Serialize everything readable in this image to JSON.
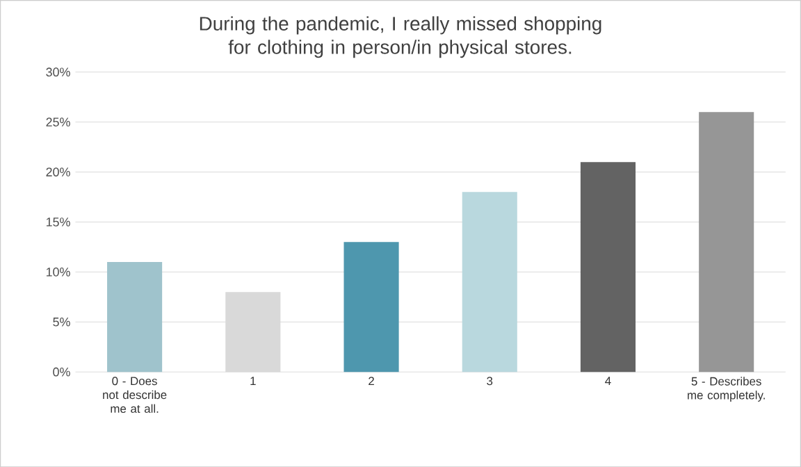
{
  "chart_data": {
    "type": "bar",
    "title": "During the pandemic, I really missed shopping for clothing in person/in physical stores.",
    "categories": [
      "0 - Does not describe me at all.",
      "1",
      "2",
      "3",
      "4",
      "5 - Describes me completely."
    ],
    "values": [
      11,
      8,
      13,
      18,
      21,
      26
    ],
    "colors": [
      "#9fc3cc",
      "#d9d9d9",
      "#4e97ae",
      "#b9d8de",
      "#636363",
      "#969696"
    ],
    "ylim": [
      0,
      30
    ],
    "yticks": [
      {
        "value": 0,
        "label": "0%"
      },
      {
        "value": 5,
        "label": "5%"
      },
      {
        "value": 10,
        "label": "10%"
      },
      {
        "value": 15,
        "label": "15%"
      },
      {
        "value": 20,
        "label": "20%"
      },
      {
        "value": 25,
        "label": "25%"
      },
      {
        "value": 30,
        "label": "30%"
      }
    ],
    "grid": "y"
  }
}
